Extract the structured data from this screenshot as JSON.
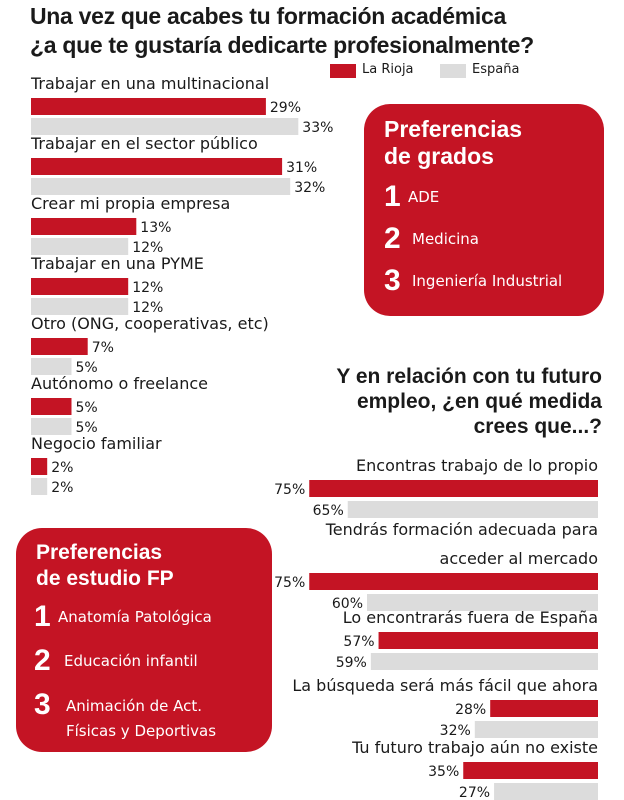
{
  "title_line1": "Una vez que acabes tu formación académica",
  "title_line2": "¿a que te gustaría dedicarte profesionalmente?",
  "legend": [
    {
      "label": "La Rioja",
      "color": "#c41424"
    },
    {
      "label": "España",
      "color": "#dcdcdc"
    }
  ],
  "chart_data": [
    {
      "type": "bar",
      "orientation": "horizontal",
      "categories": [
        "Trabajar en una multinacional",
        "Trabajar en el sector público",
        "Crear mi propia empresa",
        "Trabajar en una PYME",
        "Otro (ONG, cooperativas, etc)",
        "Autónomo o freelance",
        "Negocio familiar"
      ],
      "series": [
        {
          "name": "La Rioja",
          "values": [
            29,
            31,
            13,
            12,
            7,
            5,
            2
          ],
          "color": "#c41424"
        },
        {
          "name": "España",
          "values": [
            33,
            32,
            12,
            12,
            5,
            5,
            2
          ],
          "color": "#dcdcdc"
        }
      ],
      "value_suffix": "%"
    },
    {
      "type": "bar",
      "orientation": "horizontal",
      "title": "Y en relación con tu futuro empleo, ¿en qué medida crees que...?",
      "categories": [
        [
          "Encontras trabajo de lo propio"
        ],
        [
          "Tendrás formación adecuada para",
          "acceder al mercado"
        ],
        [
          "Lo encontrarás fuera de España"
        ],
        [
          "La búsqueda será más fácil que ahora"
        ],
        [
          "Tu futuro trabajo aún no existe"
        ]
      ],
      "series": [
        {
          "name": "La Rioja",
          "values": [
            75,
            75,
            57,
            28,
            35
          ],
          "color": "#c41424"
        },
        {
          "name": "España",
          "values": [
            65,
            60,
            59,
            32,
            27
          ],
          "color": "#dcdcdc"
        }
      ],
      "value_suffix": "%"
    }
  ],
  "grados": {
    "title_line1": "Preferencias",
    "title_line2": "de grados",
    "items": [
      {
        "num": "1",
        "label": "ADE"
      },
      {
        "num": "2",
        "label": "Medicina"
      },
      {
        "num": "3",
        "label": "Ingeniería Industrial"
      }
    ]
  },
  "fp": {
    "title_line1": "Preferencias",
    "title_line2": "de estudio FP",
    "items": [
      {
        "num": "1",
        "lines": [
          "Anatomía Patológica"
        ]
      },
      {
        "num": "2",
        "lines": [
          "Educación infantil"
        ]
      },
      {
        "num": "3",
        "lines": [
          "Animación de Act.",
          "Físicas y Deportivas"
        ]
      }
    ]
  },
  "q2_title_lines": [
    "Y en relación con tu futuro",
    "empleo, ¿en qué medida",
    "crees que...?"
  ]
}
